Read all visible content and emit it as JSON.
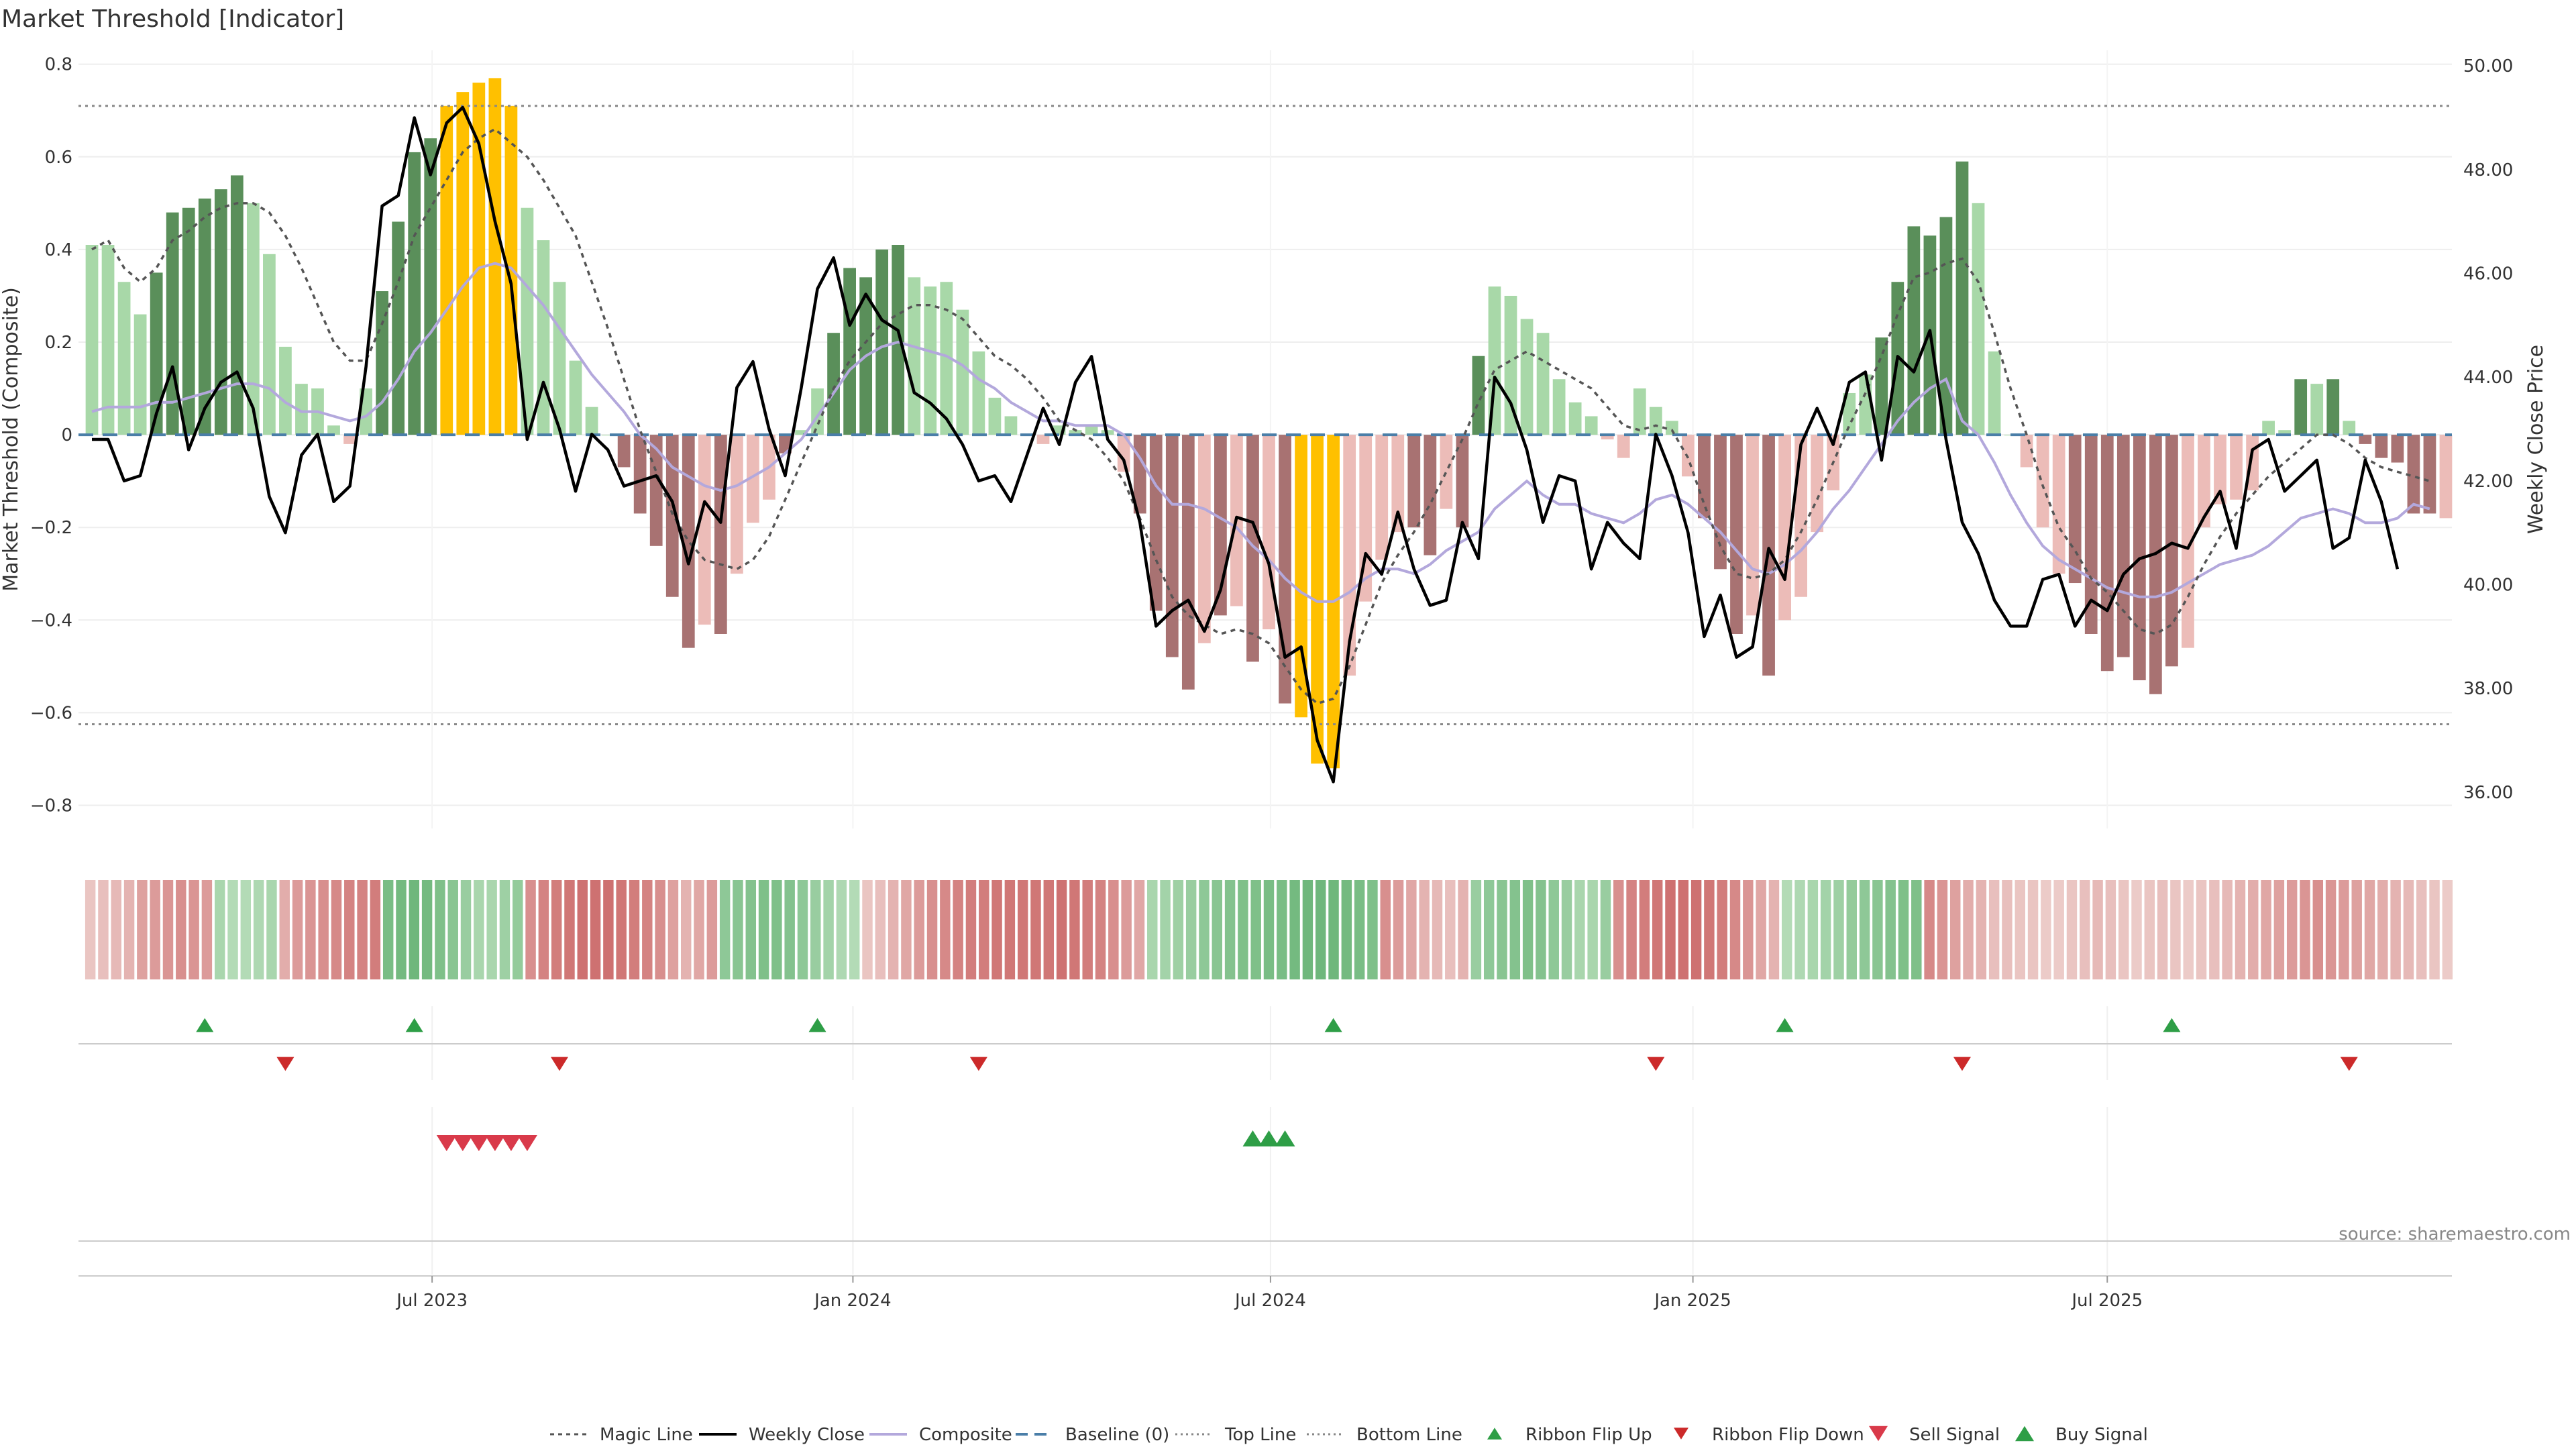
{
  "chart_data": {
    "type": "bar",
    "title": "Market Threshold [Indicator]",
    "ylabel_left": "Market Threshold (Composite)",
    "ylabel_right": "Weekly Close Price",
    "source": "source: sharemaestro.com",
    "ylim_left": [
      -0.85,
      0.83
    ],
    "ylim_right": [
      35.3,
      50.3
    ],
    "left_ticks": [
      0.8,
      0.6,
      0.4,
      0.2,
      0,
      -0.2,
      -0.4,
      -0.6,
      -0.8
    ],
    "left_tick_labels": [
      "0.8",
      "0.6",
      "0.4",
      "0.2",
      "0",
      "−0.2",
      "−0.4",
      "−0.6",
      "−0.8"
    ],
    "right_ticks": [
      50,
      48,
      46,
      44,
      42,
      40,
      38,
      36
    ],
    "right_tick_labels": [
      "50.00",
      "48.00",
      "46.00",
      "44.00",
      "42.00",
      "40.00",
      "38.00",
      "36.00"
    ],
    "x_ticks": [
      {
        "label": "Jul 2023",
        "index": 21.6
      },
      {
        "label": "Jan 2024",
        "index": 47.7
      },
      {
        "label": "Jul 2024",
        "index": 73.6
      },
      {
        "label": "Jan 2025",
        "index": 99.8
      },
      {
        "label": "Jul 2025",
        "index": 125.5
      }
    ],
    "top_line": 0.71,
    "bottom_line": -0.625,
    "baseline": 0,
    "colors": {
      "strong_positive": "#5a8f5a",
      "weak_positive": "#a8d8a8",
      "strong_negative": "#a87272",
      "weak_negative": "#ecbcb8",
      "extreme": "#ffc000",
      "weekly_close": "#000000",
      "composite": "#b3a8dc",
      "magic_line": "#555555",
      "baseline": "#4a7ea8",
      "threshold_line": "#888888",
      "flip_up": "#2e9e46",
      "flip_down": "#cc2a2a",
      "sell": "#d93a4a",
      "buy": "#2e9e46"
    },
    "composite_values": [
      0.41,
      0.41,
      0.33,
      0.26,
      0.35,
      0.48,
      0.49,
      0.51,
      0.53,
      0.56,
      0.5,
      0.39,
      0.19,
      0.11,
      0.1,
      0.02,
      -0.02,
      0.1,
      0.31,
      0.46,
      0.61,
      0.64,
      0.71,
      0.74,
      0.76,
      0.77,
      0.71,
      0.49,
      0.42,
      0.33,
      0.16,
      0.06,
      0,
      -0.07,
      -0.17,
      -0.24,
      -0.35,
      -0.46,
      -0.41,
      -0.43,
      -0.3,
      -0.19,
      -0.14,
      -0.04,
      0.01,
      0.1,
      0.22,
      0.36,
      0.34,
      0.4,
      0.41,
      0.34,
      0.32,
      0.33,
      0.27,
      0.18,
      0.08,
      0.04,
      0,
      -0.02,
      0.02,
      0.01,
      0.02,
      0.01,
      -0.08,
      -0.17,
      -0.38,
      -0.48,
      -0.55,
      -0.45,
      -0.39,
      -0.37,
      -0.49,
      -0.42,
      -0.58,
      -0.61,
      -0.71,
      -0.72,
      -0.52,
      -0.36,
      -0.27,
      -0.21,
      -0.2,
      -0.26,
      -0.16,
      -0.2,
      0.17,
      0.32,
      0.3,
      0.25,
      0.22,
      0.12,
      0.07,
      0.04,
      -0.01,
      -0.05,
      0.1,
      0.06,
      0.03,
      -0.09,
      -0.18,
      -0.29,
      -0.43,
      -0.39,
      -0.52,
      -0.4,
      -0.35,
      -0.21,
      -0.12,
      0.09,
      0.13,
      0.21,
      0.33,
      0.45,
      0.43,
      0.47,
      0.59,
      0.5,
      0.18,
      0,
      -0.07,
      -0.2,
      -0.3,
      -0.32,
      -0.43,
      -0.51,
      -0.48,
      -0.53,
      -0.56,
      -0.5,
      -0.46,
      -0.2,
      -0.15,
      -0.14,
      -0.12,
      0.03,
      0.01,
      0.12,
      0.11,
      0.12,
      0.03,
      -0.02,
      -0.05,
      -0.06,
      -0.17,
      -0.17,
      -0.18
    ],
    "bar_classes": [
      "w",
      "w",
      "w",
      "w",
      "s",
      "s",
      "s",
      "s",
      "s",
      "s",
      "w",
      "w",
      "w",
      "w",
      "w",
      "w",
      "w",
      "w",
      "s",
      "s",
      "s",
      "s",
      "e",
      "e",
      "e",
      "e",
      "e",
      "w",
      "w",
      "w",
      "w",
      "w",
      "w",
      "s",
      "s",
      "s",
      "s",
      "s",
      "w",
      "s",
      "w",
      "w",
      "w",
      "s",
      "w",
      "w",
      "s",
      "s",
      "s",
      "s",
      "s",
      "w",
      "w",
      "w",
      "w",
      "w",
      "w",
      "w",
      "w",
      "w",
      "w",
      "w",
      "w",
      "w",
      "w",
      "s",
      "s",
      "s",
      "s",
      "w",
      "s",
      "w",
      "s",
      "w",
      "s",
      "e",
      "e",
      "e",
      "w",
      "w",
      "w",
      "w",
      "s",
      "s",
      "w",
      "s",
      "s",
      "w",
      "w",
      "w",
      "w",
      "w",
      "w",
      "w",
      "w",
      "w",
      "w",
      "w",
      "w",
      "w",
      "s",
      "s",
      "s",
      "w",
      "s",
      "w",
      "w",
      "w",
      "w",
      "w",
      "w",
      "s",
      "s",
      "s",
      "s",
      "s",
      "s",
      "w",
      "w",
      "w",
      "w",
      "w",
      "w",
      "s",
      "s",
      "s",
      "s",
      "s",
      "s",
      "s",
      "w",
      "w",
      "w",
      "w",
      "w",
      "w",
      "w",
      "s",
      "w",
      "s",
      "w",
      "s",
      "s",
      "s",
      "s",
      "s"
    ],
    "weekly_close": [
      42.8,
      42.8,
      42.0,
      42.1,
      43.3,
      44.2,
      42.6,
      43.4,
      43.9,
      44.1,
      43.4,
      41.7,
      41.0,
      42.5,
      42.9,
      41.6,
      41.9,
      44.2,
      47.3,
      47.5,
      49.0,
      47.9,
      48.9,
      49.2,
      48.5,
      47.0,
      45.8,
      42.8,
      43.9,
      43.0,
      41.8,
      42.9,
      42.6,
      41.9,
      42.0,
      42.1,
      41.6,
      40.4,
      41.6,
      41.2,
      43.8,
      44.3,
      43.0,
      42.1,
      43.8,
      45.7,
      46.3,
      45.0,
      45.6,
      45.1,
      44.9,
      43.7,
      43.5,
      43.2,
      42.7,
      42.0,
      42.1,
      41.6,
      42.5,
      43.4,
      42.7,
      43.9,
      44.4,
      42.8,
      42.4,
      41.2,
      39.2,
      39.5,
      39.7,
      39.1,
      39.9,
      41.3,
      41.2,
      40.4,
      38.6,
      38.8,
      37.0,
      36.2,
      38.9,
      40.6,
      40.2,
      41.4,
      40.3,
      39.6,
      39.7,
      41.2,
      40.5,
      44.0,
      43.5,
      42.6,
      41.2,
      42.1,
      42.0,
      40.3,
      41.2,
      40.8,
      40.5,
      42.9,
      42.1,
      41.0,
      39.0,
      39.8,
      38.6,
      38.8,
      40.7,
      40.1,
      42.7,
      43.4,
      42.7,
      43.9,
      44.1,
      42.4,
      44.4,
      44.1,
      44.9,
      42.8,
      41.2,
      40.6,
      39.7,
      39.2,
      39.2,
      40.1,
      40.2,
      39.2,
      39.7,
      39.5,
      40.2,
      40.5,
      40.6,
      40.8,
      40.7,
      41.3,
      41.8,
      40.7,
      42.6,
      42.8,
      41.8,
      42.1,
      42.4,
      40.7,
      40.9,
      42.4,
      41.6,
      40.3
    ],
    "composite_line": [
      0.05,
      0.06,
      0.06,
      0.06,
      0.07,
      0.07,
      0.08,
      0.09,
      0.1,
      0.11,
      0.11,
      0.1,
      0.07,
      0.05,
      0.05,
      0.04,
      0.03,
      0.04,
      0.07,
      0.12,
      0.18,
      0.22,
      0.27,
      0.32,
      0.36,
      0.37,
      0.36,
      0.32,
      0.28,
      0.23,
      0.18,
      0.13,
      0.09,
      0.05,
      0,
      -0.03,
      -0.07,
      -0.09,
      -0.11,
      -0.12,
      -0.11,
      -0.09,
      -0.07,
      -0.04,
      -0.01,
      0.04,
      0.09,
      0.14,
      0.17,
      0.19,
      0.2,
      0.19,
      0.18,
      0.17,
      0.15,
      0.12,
      0.1,
      0.07,
      0.05,
      0.03,
      0.03,
      0.02,
      0.02,
      0.02,
      0,
      -0.05,
      -0.11,
      -0.15,
      -0.15,
      -0.16,
      -0.18,
      -0.2,
      -0.24,
      -0.27,
      -0.31,
      -0.34,
      -0.36,
      -0.36,
      -0.34,
      -0.31,
      -0.29,
      -0.29,
      -0.3,
      -0.28,
      -0.25,
      -0.23,
      -0.21,
      -0.16,
      -0.13,
      -0.1,
      -0.13,
      -0.15,
      -0.15,
      -0.17,
      -0.18,
      -0.19,
      -0.17,
      -0.14,
      -0.13,
      -0.15,
      -0.18,
      -0.21,
      -0.25,
      -0.29,
      -0.3,
      -0.28,
      -0.25,
      -0.21,
      -0.16,
      -0.12,
      -0.07,
      -0.02,
      0.03,
      0.07,
      0.1,
      0.12,
      0.03,
      0,
      -0.06,
      -0.13,
      -0.19,
      -0.24,
      -0.27,
      -0.29,
      -0.31,
      -0.33,
      -0.34,
      -0.35,
      -0.35,
      -0.34,
      -0.32,
      -0.3,
      -0.28,
      -0.27,
      -0.26,
      -0.24,
      -0.21,
      -0.18,
      -0.17,
      -0.16,
      -0.17,
      -0.19,
      -0.19,
      -0.18,
      -0.15,
      -0.16
    ],
    "magic_line": [
      0.4,
      0.42,
      0.36,
      0.33,
      0.36,
      0.42,
      0.44,
      0.47,
      0.49,
      0.5,
      0.5,
      0.48,
      0.43,
      0.36,
      0.28,
      0.2,
      0.16,
      0.16,
      0.24,
      0.33,
      0.43,
      0.49,
      0.55,
      0.61,
      0.64,
      0.66,
      0.63,
      0.6,
      0.55,
      0.49,
      0.43,
      0.33,
      0.23,
      0.12,
      0.01,
      -0.08,
      -0.17,
      -0.23,
      -0.27,
      -0.28,
      -0.29,
      -0.27,
      -0.22,
      -0.14,
      -0.06,
      0.02,
      0.1,
      0.16,
      0.2,
      0.24,
      0.26,
      0.28,
      0.28,
      0.27,
      0.25,
      0.21,
      0.17,
      0.15,
      0.12,
      0.08,
      0.03,
      0.01,
      -0.01,
      -0.05,
      -0.1,
      -0.18,
      -0.27,
      -0.35,
      -0.39,
      -0.41,
      -0.43,
      -0.42,
      -0.43,
      -0.45,
      -0.5,
      -0.55,
      -0.58,
      -0.57,
      -0.5,
      -0.41,
      -0.32,
      -0.26,
      -0.21,
      -0.15,
      -0.08,
      -0.01,
      0.07,
      0.14,
      0.16,
      0.18,
      0.16,
      0.14,
      0.12,
      0.1,
      0.06,
      0.02,
      0.01,
      0.02,
      0.01,
      -0.05,
      -0.15,
      -0.24,
      -0.3,
      -0.31,
      -0.3,
      -0.27,
      -0.21,
      -0.14,
      -0.06,
      0.02,
      0.09,
      0.17,
      0.26,
      0.34,
      0.35,
      0.37,
      0.38,
      0.33,
      0.22,
      0.1,
      0,
      -0.11,
      -0.2,
      -0.25,
      -0.31,
      -0.34,
      -0.38,
      -0.42,
      -0.43,
      -0.41,
      -0.35,
      -0.28,
      -0.22,
      -0.17,
      -0.13,
      -0.09,
      -0.06,
      -0.03,
      0,
      0,
      -0.02,
      -0.05,
      -0.07,
      -0.08,
      -0.09,
      -0.1
    ],
    "ribbon_values": [
      0.15,
      0.2,
      0.25,
      0.3,
      0.45,
      0.5,
      0.55,
      0.6,
      0.55,
      0.5,
      0.3,
      0.2,
      0.2,
      0.25,
      0.3,
      0.35,
      0.5,
      0.55,
      0.6,
      0.65,
      0.7,
      0.7,
      0.75,
      0.75,
      0.8,
      0.85,
      0.8,
      0.7,
      0.6,
      0.45,
      0.3,
      0.3,
      0.4,
      0.5,
      0.6,
      0.7,
      0.75,
      0.8,
      0.85,
      0.85,
      0.85,
      0.8,
      0.75,
      0.7,
      0.6,
      0.45,
      0.3,
      0.4,
      0.5,
      0.55,
      0.6,
      0.65,
      0.7,
      0.7,
      0.65,
      0.55,
      0.45,
      0.35,
      0.25,
      0.2,
      0.15,
      0.2,
      0.3,
      0.4,
      0.5,
      0.6,
      0.65,
      0.7,
      0.75,
      0.75,
      0.8,
      0.8,
      0.8,
      0.8,
      0.8,
      0.85,
      0.8,
      0.75,
      0.7,
      0.6,
      0.5,
      0.4,
      0.3,
      0.35,
      0.4,
      0.45,
      0.55,
      0.6,
      0.65,
      0.7,
      0.7,
      0.75,
      0.75,
      0.8,
      0.85,
      0.85,
      0.85,
      0.8,
      0.75,
      0.7,
      0.6,
      0.5,
      0.4,
      0.3,
      0.25,
      0.2,
      0.3,
      0.45,
      0.55,
      0.6,
      0.65,
      0.7,
      0.65,
      0.55,
      0.45,
      0.3,
      0.3,
      0.45,
      0.6,
      0.7,
      0.75,
      0.8,
      0.85,
      0.85,
      0.85,
      0.8,
      0.75,
      0.65,
      0.55,
      0.4,
      0.3,
      0.2,
      0.25,
      0.3,
      0.35,
      0.4,
      0.5,
      0.55,
      0.6,
      0.65,
      0.7,
      0.7,
      0.65,
      0.55,
      0.45,
      0.35,
      0.3,
      0.2,
      0.2,
      0.15,
      0.15,
      0.1,
      0.1,
      0.15,
      0.2,
      0.25,
      0.2,
      0.15,
      0.1,
      0.15,
      0.2,
      0.15,
      0.1,
      0.15,
      0.2,
      0.25,
      0.3,
      0.35,
      0.4,
      0.45,
      0.5,
      0.55,
      0.6,
      0.55,
      0.5,
      0.45,
      0.4,
      0.35,
      0.3,
      0.25,
      0.2,
      0.15,
      0.1
    ],
    "ribbon_signs": [
      -1,
      -1,
      -1,
      -1,
      -1,
      -1,
      -1,
      -1,
      -1,
      -1,
      1,
      1,
      1,
      1,
      1,
      -1,
      -1,
      -1,
      -1,
      -1,
      -1,
      -1,
      -1,
      1,
      1,
      1,
      1,
      1,
      1,
      1,
      1,
      1,
      1,
      1,
      -1,
      -1,
      -1,
      -1,
      -1,
      -1,
      -1,
      -1,
      -1,
      -1,
      -1,
      -1,
      -1,
      -1,
      -1,
      1,
      1,
      1,
      1,
      1,
      1,
      1,
      1,
      1,
      1,
      1,
      -1,
      -1,
      -1,
      -1,
      -1,
      -1,
      -1,
      -1,
      -1,
      -1,
      -1,
      -1,
      -1,
      -1,
      -1,
      -1,
      -1,
      -1,
      -1,
      -1,
      -1,
      -1,
      1,
      1,
      1,
      1,
      1,
      1,
      1,
      1,
      1,
      1,
      1,
      1,
      1,
      1,
      1,
      1,
      1,
      1,
      -1,
      -1,
      -1,
      -1,
      -1,
      -1,
      -1,
      1,
      1,
      1,
      1,
      1,
      1,
      1,
      1,
      1,
      1,
      1,
      -1,
      -1,
      -1,
      -1,
      -1,
      -1,
      -1,
      -1,
      -1,
      -1,
      -1,
      -1,
      -1,
      1,
      1,
      1,
      1,
      1,
      1,
      1,
      1,
      1,
      1,
      1,
      -1,
      -1,
      -1,
      -1
    ],
    "ribbon_flip_up": [
      7,
      20,
      45,
      77,
      105,
      129
    ],
    "ribbon_flip_down": [
      12,
      29,
      55,
      97,
      116,
      140
    ],
    "sell_signal": [
      22,
      23,
      24,
      25,
      26,
      27
    ],
    "buy_signal": [
      72,
      73,
      74
    ],
    "legend": [
      "Magic Line",
      "Weekly Close",
      "Composite",
      "Baseline (0)",
      "Top Line",
      "Bottom Line",
      "Ribbon Flip Up",
      "Ribbon Flip Down",
      "Sell Signal",
      "Buy Signal"
    ]
  }
}
